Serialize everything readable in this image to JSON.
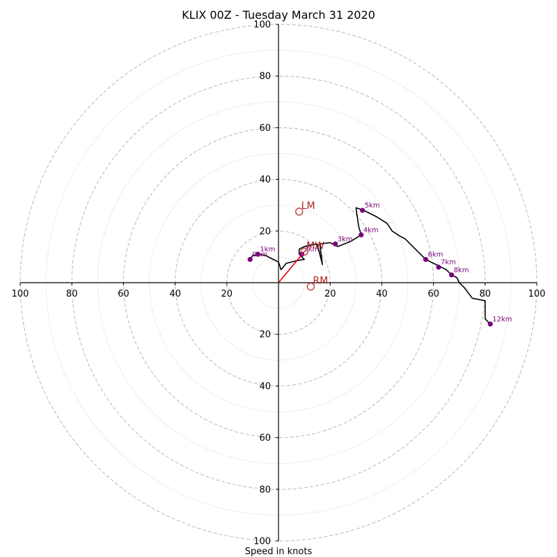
{
  "chart_data": {
    "type": "hodograph",
    "title": "KLIX 00Z - Tuesday March 31 2020",
    "xlabel": "Speed in knots",
    "range": [
      -100,
      100
    ],
    "major_rings": [
      20,
      40,
      60,
      80,
      100
    ],
    "minor_rings": [
      10,
      30,
      50,
      70,
      90
    ],
    "x_tick_labels": [
      "100",
      "80",
      "60",
      "40",
      "20",
      "20",
      "40",
      "60",
      "80",
      "100"
    ],
    "y_tick_labels": [
      "100",
      "80",
      "60",
      "40",
      "20",
      "20",
      "40",
      "60",
      "80",
      "100"
    ],
    "wind_profile": [
      [
        -11,
        9
      ],
      [
        -10,
        10.5
      ],
      [
        -8,
        11
      ],
      [
        -5,
        10.5
      ],
      [
        -2,
        9
      ],
      [
        0,
        8
      ],
      [
        1,
        5
      ],
      [
        3,
        7.5
      ],
      [
        7,
        8.5
      ],
      [
        10,
        9
      ],
      [
        8,
        11
      ],
      [
        8,
        13
      ],
      [
        10,
        14
      ],
      [
        12,
        14.5
      ],
      [
        15,
        15
      ],
      [
        17,
        7
      ],
      [
        16,
        15
      ],
      [
        20,
        15.5
      ],
      [
        23,
        14
      ],
      [
        28,
        16
      ],
      [
        32,
        18.5
      ],
      [
        31,
        22
      ],
      [
        30,
        29
      ],
      [
        33,
        28
      ],
      [
        38,
        25.5
      ],
      [
        42,
        23
      ],
      [
        44,
        20
      ],
      [
        47,
        18
      ],
      [
        49,
        17
      ],
      [
        51,
        15
      ],
      [
        53,
        13
      ],
      [
        55,
        11
      ],
      [
        57,
        9
      ],
      [
        59,
        8
      ],
      [
        61,
        7
      ],
      [
        63,
        6
      ],
      [
        65,
        5
      ],
      [
        67,
        3
      ],
      [
        69,
        2
      ],
      [
        70,
        0
      ],
      [
        72,
        -2
      ],
      [
        75,
        -6
      ],
      [
        80,
        -7
      ],
      [
        80,
        -14
      ],
      [
        82,
        -16
      ]
    ],
    "height_markers": [
      {
        "label": "0km",
        "u": -11,
        "v": 9
      },
      {
        "label": "1km",
        "u": -8,
        "v": 11
      },
      {
        "label": "2km",
        "u": 9,
        "v": 11
      },
      {
        "label": "3km",
        "u": 22,
        "v": 15
      },
      {
        "label": "4km",
        "u": 32,
        "v": 18.5
      },
      {
        "label": "5km",
        "u": 32.5,
        "v": 28
      },
      {
        "label": "6km",
        "u": 57,
        "v": 9
      },
      {
        "label": "7km",
        "u": 62,
        "v": 6
      },
      {
        "label": "8km",
        "u": 67,
        "v": 3
      },
      {
        "label": "12km",
        "u": 82,
        "v": -16
      }
    ],
    "storm_motion": [
      {
        "label": "LM",
        "u": 8,
        "v": 27.5
      },
      {
        "label": "MW",
        "u": 10,
        "v": 12
      },
      {
        "label": "RM",
        "u": 12.5,
        "v": -1.5
      }
    ],
    "mean_wind_vector": {
      "u": 10,
      "v": 12
    },
    "colors": {
      "profile": "#000000",
      "height_markers": "#7a007a",
      "storm_motion": "#b22222",
      "mean_wind_vector": "#e00000",
      "major_rings": "#bdbdbd",
      "minor_rings": "#cfcfcf"
    }
  }
}
